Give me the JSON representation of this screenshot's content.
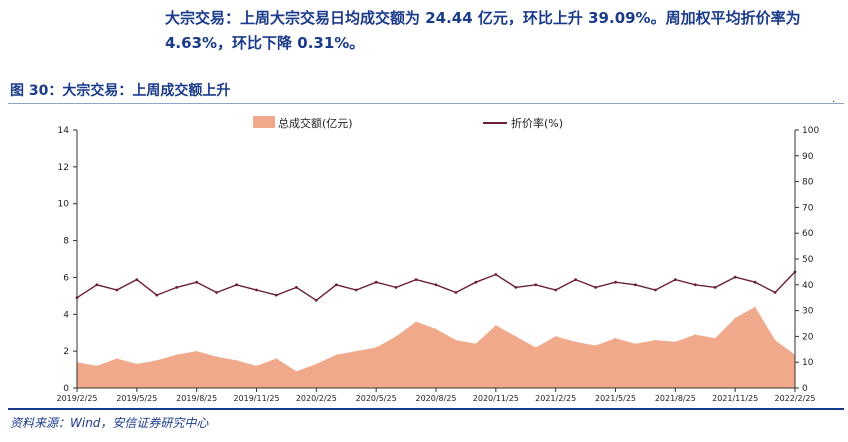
{
  "headline": "大宗交易：上周大宗交易日均成交额为 24.44 亿元，环比上升 39.09%。周加权平均折价率为 4.63%，环比下降 0.31%。",
  "figure_title": "图 30：大宗交易：上周成交额上升",
  "source": "资料来源：Wind，安信证券研究中心",
  "colors": {
    "area": "#f0a98a",
    "line": "#6b1f3a",
    "title": "#1a3a8a"
  },
  "chart_data": {
    "type": "area",
    "legend": [
      {
        "name": "总成交额(亿元)",
        "kind": "area"
      },
      {
        "name": "折价率(%)",
        "kind": "line"
      }
    ],
    "legend_position": "top",
    "x_ticks": [
      "2019/2/25",
      "2019/5/25",
      "2019/8/25",
      "2019/11/25",
      "2020/2/25",
      "2020/5/25",
      "2020/8/25",
      "2020/11/25",
      "2021/2/25",
      "2021/5/25",
      "2021/8/25",
      "2021/11/25",
      "2022/2/25"
    ],
    "y_left": {
      "min": 0,
      "max": 14,
      "ticks": [
        0,
        2,
        4,
        6,
        8,
        10,
        12,
        14
      ]
    },
    "y_right": {
      "min": 0,
      "max": 100,
      "ticks": [
        0,
        10,
        20,
        30,
        40,
        50,
        60,
        70,
        80,
        90,
        100
      ]
    },
    "grid": false,
    "series": [
      {
        "name": "总成交额(亿元)",
        "axis": "left",
        "x": [
          "2019/2/25",
          "2019/3/25",
          "2019/4/25",
          "2019/5/25",
          "2019/6/25",
          "2019/7/25",
          "2019/8/25",
          "2019/9/25",
          "2019/10/25",
          "2019/11/25",
          "2019/12/25",
          "2020/1/25",
          "2020/2/25",
          "2020/3/25",
          "2020/4/25",
          "2020/5/25",
          "2020/6/25",
          "2020/7/25",
          "2020/8/25",
          "2020/9/25",
          "2020/10/25",
          "2020/11/25",
          "2020/12/25",
          "2021/1/25",
          "2021/2/25",
          "2021/3/25",
          "2021/4/25",
          "2021/5/25",
          "2021/6/25",
          "2021/7/25",
          "2021/8/25",
          "2021/9/25",
          "2021/10/25",
          "2021/11/25",
          "2021/12/25",
          "2022/1/25",
          "2022/2/25"
        ],
        "values": [
          1.4,
          1.2,
          1.6,
          1.3,
          1.5,
          1.8,
          2.0,
          1.7,
          1.5,
          1.2,
          1.6,
          0.9,
          1.3,
          1.8,
          2.0,
          2.2,
          2.8,
          3.6,
          3.2,
          2.6,
          2.4,
          3.4,
          2.8,
          2.2,
          2.8,
          2.5,
          2.3,
          2.7,
          2.4,
          2.6,
          2.5,
          2.9,
          2.7,
          3.8,
          4.4,
          2.6,
          1.8
        ]
      },
      {
        "name": "折价率(%)",
        "axis": "right",
        "x": [
          "2019/2/25",
          "2019/3/25",
          "2019/4/25",
          "2019/5/25",
          "2019/6/25",
          "2019/7/25",
          "2019/8/25",
          "2019/9/25",
          "2019/10/25",
          "2019/11/25",
          "2019/12/25",
          "2020/1/25",
          "2020/2/25",
          "2020/3/25",
          "2020/4/25",
          "2020/5/25",
          "2020/6/25",
          "2020/7/25",
          "2020/8/25",
          "2020/9/25",
          "2020/10/25",
          "2020/11/25",
          "2020/12/25",
          "2021/1/25",
          "2021/2/25",
          "2021/3/25",
          "2021/4/25",
          "2021/5/25",
          "2021/6/25",
          "2021/7/25",
          "2021/8/25",
          "2021/9/25",
          "2021/10/25",
          "2021/11/25",
          "2021/12/25",
          "2022/1/25",
          "2022/2/25"
        ],
        "values": [
          35,
          40,
          38,
          42,
          36,
          39,
          41,
          37,
          40,
          38,
          36,
          39,
          34,
          40,
          38,
          41,
          39,
          42,
          40,
          37,
          41,
          44,
          39,
          40,
          38,
          42,
          39,
          41,
          40,
          38,
          42,
          40,
          39,
          43,
          41,
          37,
          45
        ]
      }
    ]
  }
}
